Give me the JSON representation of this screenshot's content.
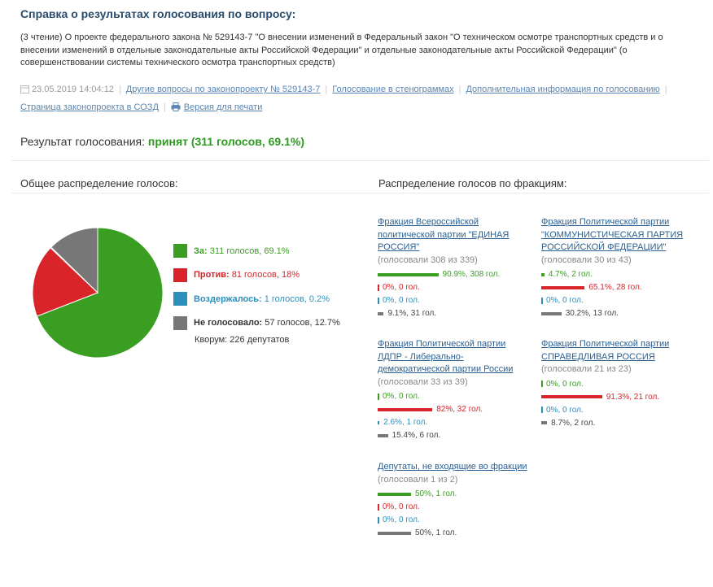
{
  "header": {
    "title": "Справка о результатах голосования по вопросу:",
    "description": "(3 чтение) О проекте федерального закона № 529143-7 \"О внесении изменений в Федеральный закон \"О техническом осмотре транспортных средств и о внесении изменений в отдельные законодательные акты Российской Федерации\" и отдельные законодательные акты Российской Федерации\" (о совершенствовании системы технического осмотра транспортных средств)"
  },
  "meta": {
    "datetime": "23.05.2019 14:04:12",
    "links": [
      "Другие вопросы по законопроекту № 529143-7",
      "Голосование в стенограммах",
      "Дополнительная информация по голосованию",
      "Страница законопроекта в СОЗД",
      "Версия для печати"
    ]
  },
  "result": {
    "label": "Результат голосования:",
    "value": "принят (311 голосов, 69.1%)"
  },
  "overall": {
    "heading": "Общее распределение голосов:",
    "legend": [
      {
        "label": "За:",
        "text": "311 голосов, 69.1%",
        "color": "#3a9e23",
        "value": 311
      },
      {
        "label": "Против:",
        "text": "81 голосов, 18%",
        "color": "#d9242a",
        "value": 81
      },
      {
        "label": "Воздержалось:",
        "text": "1 голосов, 0.2%",
        "color": "#2c8fbd",
        "value": 1
      },
      {
        "label": "Не голосовало:",
        "text": "57 голосов, 12.7%",
        "color": "#777777",
        "value": 57
      }
    ],
    "kvorum": "Кворум: 226 депутатов"
  },
  "factions_heading": "Распределение голосов по фракциям:",
  "factions": [
    {
      "name": "Фракция Всероссийской политической партии \"ЕДИНАЯ РОССИЯ\"",
      "voted": "(голосовали 308 из 339)",
      "rows": [
        {
          "pct": 90.9,
          "text": "90.9%, 308 гол."
        },
        {
          "pct": 0,
          "text": "0%, 0 гол."
        },
        {
          "pct": 0,
          "text": "0%, 0 гол."
        },
        {
          "pct": 9.1,
          "text": "9.1%, 31 гол."
        }
      ]
    },
    {
      "name": "Фракция Политической партии \"КОММУНИСТИЧЕСКАЯ ПАРТИЯ РОССИЙСКОЙ ФЕДЕРАЦИИ\"",
      "voted": "(голосовали 30 из 43)",
      "rows": [
        {
          "pct": 4.7,
          "text": "4.7%, 2 гол."
        },
        {
          "pct": 65.1,
          "text": "65.1%, 28 гол."
        },
        {
          "pct": 0,
          "text": "0%, 0 гол."
        },
        {
          "pct": 30.2,
          "text": "30.2%, 13 гол."
        }
      ]
    },
    {
      "name": "Фракция Политической партии ЛДПР - Либерально-демократической партии России",
      "voted": "(голосовали 33 из 39)",
      "rows": [
        {
          "pct": 0,
          "text": "0%, 0 гол."
        },
        {
          "pct": 82,
          "text": "82%, 32 гол."
        },
        {
          "pct": 2.6,
          "text": "2.6%, 1 гол."
        },
        {
          "pct": 15.4,
          "text": "15.4%, 6 гол."
        }
      ]
    },
    {
      "name": "Фракция Политической партии СПРАВЕДЛИВАЯ РОССИЯ",
      "voted": "(голосовали 21 из 23)",
      "rows": [
        {
          "pct": 0,
          "text": "0%, 0 гол."
        },
        {
          "pct": 91.3,
          "text": "91.3%, 21 гол."
        },
        {
          "pct": 0,
          "text": "0%, 0 гол."
        },
        {
          "pct": 8.7,
          "text": "8.7%, 2 гол."
        }
      ]
    },
    {
      "name": "Депутаты, не входящие во фракции",
      "voted": "(голосовали 1 из 2)",
      "rows": [
        {
          "pct": 50,
          "text": "50%, 1 гол."
        },
        {
          "pct": 0,
          "text": "0%, 0 гол."
        },
        {
          "pct": 0,
          "text": "0%, 0 гол."
        },
        {
          "pct": 50,
          "text": "50%, 1 гол."
        }
      ]
    }
  ]
}
